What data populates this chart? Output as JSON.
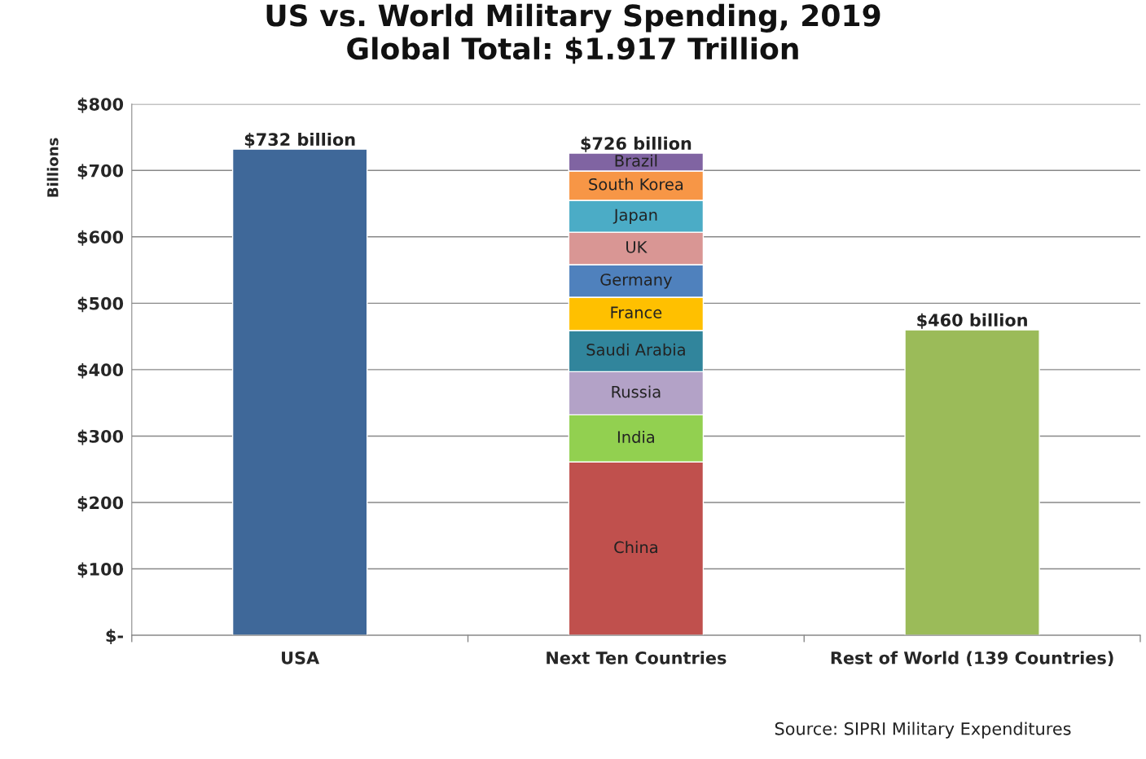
{
  "chart_data": {
    "type": "bar",
    "title": "US vs. World Military Spending, 2019\nGlobal Total: $1.917 Trillion",
    "ylabel": "Billions",
    "categories": [
      "USA",
      "Next Ten Countries",
      "Rest of World (139 Countries)"
    ],
    "stacked": true,
    "series": [
      {
        "color": "#3f6899",
        "values": [
          732,
          null,
          null
        ]
      },
      {
        "name": "China",
        "color": "#c0504d",
        "values": [
          null,
          261,
          null
        ]
      },
      {
        "name": "India",
        "color": "#92d050",
        "values": [
          null,
          71,
          null
        ]
      },
      {
        "name": "Russia",
        "color": "#b3a2c7",
        "values": [
          null,
          65,
          null
        ]
      },
      {
        "name": "Saudi Arabia",
        "color": "#31859c",
        "values": [
          null,
          62,
          null
        ]
      },
      {
        "name": "France",
        "color": "#ffc000",
        "values": [
          null,
          50,
          null
        ]
      },
      {
        "name": "Germany",
        "color": "#4f81bd",
        "values": [
          null,
          49,
          null
        ]
      },
      {
        "name": "UK",
        "color": "#d99694",
        "values": [
          null,
          49,
          null
        ]
      },
      {
        "name": "Japan",
        "color": "#4bacc6",
        "values": [
          null,
          48,
          null
        ]
      },
      {
        "name": "South Korea",
        "color": "#f79646",
        "values": [
          null,
          44,
          null
        ]
      },
      {
        "name": "Brazil",
        "color": "#8064a2",
        "values": [
          null,
          27,
          null
        ]
      },
      {
        "color": "#9bbb59",
        "values": [
          null,
          null,
          460
        ]
      }
    ],
    "totals": [
      "$732 billion",
      "$726 billion",
      "$460 billion"
    ],
    "ylim": [
      0,
      800
    ],
    "yticks": [
      {
        "value": 0,
        "label": "$-"
      },
      {
        "value": 100,
        "label": "$100"
      },
      {
        "value": 200,
        "label": "$200"
      },
      {
        "value": 300,
        "label": "$300"
      },
      {
        "value": 400,
        "label": "$400"
      },
      {
        "value": 500,
        "label": "$500"
      },
      {
        "value": 600,
        "label": "$600"
      },
      {
        "value": 700,
        "label": "$700"
      },
      {
        "value": 800,
        "label": "$800"
      }
    ],
    "grid": "y",
    "legend": false,
    "annotations": [
      "Source: SIPRI Military Expenditures"
    ]
  }
}
